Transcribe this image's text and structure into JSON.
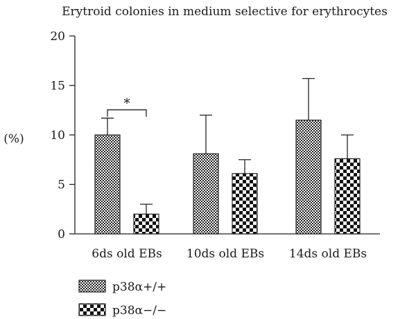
{
  "chart_data": {
    "type": "bar",
    "title": "Erytroid colonies in medium selective for erythrocytes",
    "ylabel": "(%)",
    "xlabel": "",
    "ylim": [
      0,
      20
    ],
    "yticks": [
      0,
      5,
      10,
      15,
      20
    ],
    "categories": [
      "6ds old EBs",
      "10ds old EBs",
      "14ds old EBs"
    ],
    "series": [
      {
        "name": "p38α+/+",
        "values": [
          10.0,
          8.1,
          11.5
        ],
        "errors": [
          1.7,
          3.9,
          4.2
        ],
        "pattern": "fine-checker"
      },
      {
        "name": "p38α−/−",
        "values": [
          2.0,
          6.1,
          7.6
        ],
        "errors": [
          1.0,
          1.4,
          2.4
        ],
        "pattern": "coarse-checker"
      }
    ],
    "annotations": [
      {
        "text": "*",
        "category_index": 0,
        "between_series": [
          0,
          1
        ]
      }
    ],
    "grid": false,
    "legend_position": "bottom-left"
  }
}
